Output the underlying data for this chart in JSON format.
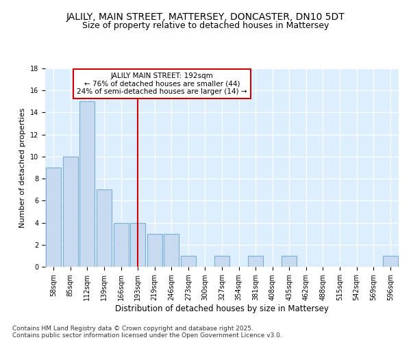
{
  "title1": "JALILY, MAIN STREET, MATTERSEY, DONCASTER, DN10 5DT",
  "title2": "Size of property relative to detached houses in Mattersey",
  "xlabel": "Distribution of detached houses by size in Mattersey",
  "ylabel": "Number of detached properties",
  "categories": [
    "58sqm",
    "85sqm",
    "112sqm",
    "139sqm",
    "166sqm",
    "193sqm",
    "219sqm",
    "246sqm",
    "273sqm",
    "300sqm",
    "327sqm",
    "354sqm",
    "381sqm",
    "408sqm",
    "435sqm",
    "462sqm",
    "488sqm",
    "515sqm",
    "542sqm",
    "569sqm",
    "596sqm"
  ],
  "values": [
    9,
    10,
    15,
    7,
    4,
    4,
    3,
    3,
    1,
    0,
    1,
    0,
    1,
    0,
    1,
    0,
    0,
    0,
    0,
    0,
    1
  ],
  "bar_color": "#c8daf0",
  "bar_edge_color": "#7aadd4",
  "vline_x_index": 5,
  "vline_color": "#cc0000",
  "annotation_text": "JALILY MAIN STREET: 192sqm\n← 76% of detached houses are smaller (44)\n24% of semi-detached houses are larger (14) →",
  "annotation_box_color": "#ffffff",
  "annotation_box_edge": "#cc0000",
  "plot_bg_color": "#ddeeff",
  "grid_color": "#ffffff",
  "fig_bg_color": "#ffffff",
  "ylim": [
    0,
    18
  ],
  "yticks": [
    0,
    2,
    4,
    6,
    8,
    10,
    12,
    14,
    16,
    18
  ],
  "footer": "Contains HM Land Registry data © Crown copyright and database right 2025.\nContains public sector information licensed under the Open Government Licence v3.0.",
  "title1_fontsize": 10,
  "title2_fontsize": 9,
  "xlabel_fontsize": 8.5,
  "ylabel_fontsize": 8,
  "tick_fontsize": 7,
  "annotation_fontsize": 7.5,
  "footer_fontsize": 6.5
}
